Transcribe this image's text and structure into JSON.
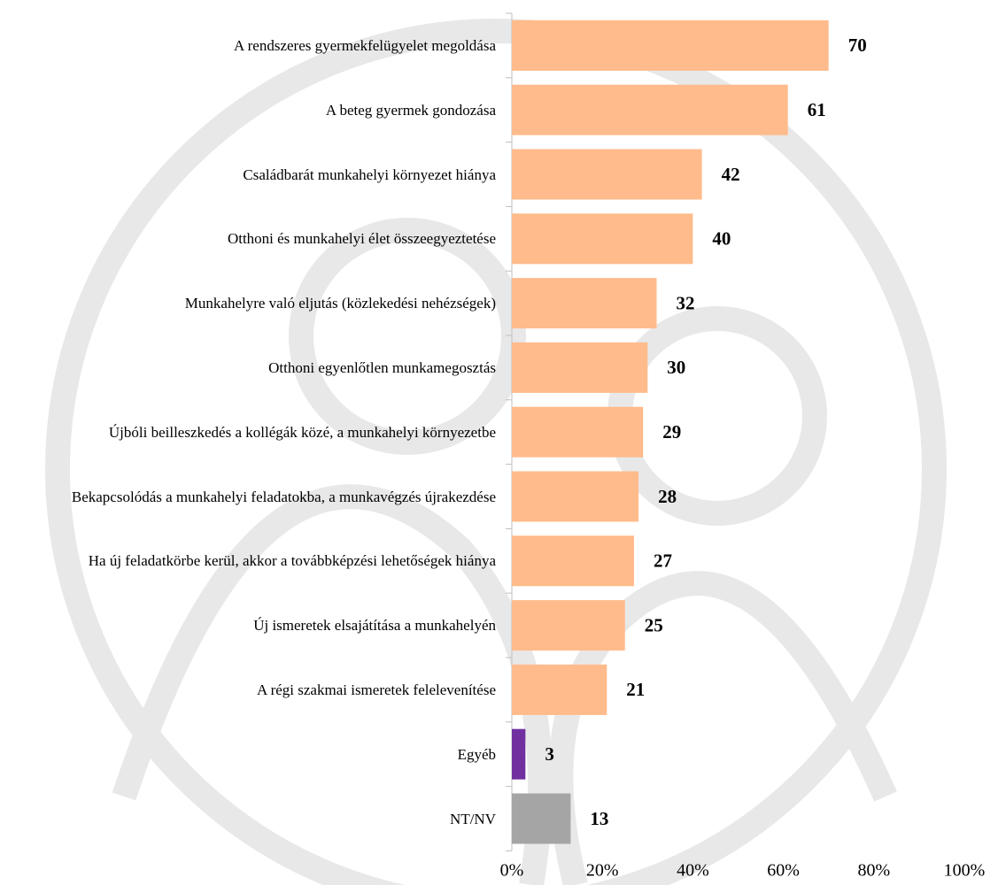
{
  "chart_data": {
    "type": "bar",
    "orientation": "horizontal",
    "categories": [
      "A rendszeres gyermekfelügyelet megoldása",
      "A beteg gyermek gondozása",
      "Családbarát munkahelyi környezet hiánya",
      "Otthoni és munkahelyi élet összeegyeztetése",
      "Munkahelyre való eljutás (közlekedési nehézségek)",
      "Otthoni egyenlőtlen munkamegosztás",
      "Újbóli beilleszkedés a kollégák közé, a munkahelyi környezetbe",
      "Bekapcsolódás a munkahelyi feladatokba, a munkavégzés újrakezdése",
      "Ha új feladatkörbe kerül, akkor a továbbképzési lehetőségek hiánya",
      "Új ismeretek elsajátítása a munkahelyén",
      "A régi szakmai ismeretek felelevenítése",
      "Egyéb",
      "NT/NV"
    ],
    "values": [
      70,
      61,
      42,
      40,
      32,
      30,
      29,
      28,
      27,
      25,
      21,
      3,
      13
    ],
    "colors": [
      "#ffbb8b",
      "#ffbb8b",
      "#ffbb8b",
      "#ffbb8b",
      "#ffbb8b",
      "#ffbb8b",
      "#ffbb8b",
      "#ffbb8b",
      "#ffbb8b",
      "#ffbb8b",
      "#ffbb8b",
      "#7030a0",
      "#a5a5a5"
    ],
    "xlim": [
      0,
      100
    ],
    "xticks": [
      {
        "value": 0,
        "label": "0%"
      },
      {
        "value": 20,
        "label": "20%"
      },
      {
        "value": 40,
        "label": "40%"
      },
      {
        "value": 60,
        "label": "60%"
      },
      {
        "value": 80,
        "label": "80%"
      },
      {
        "value": 100,
        "label": "100%"
      }
    ]
  }
}
